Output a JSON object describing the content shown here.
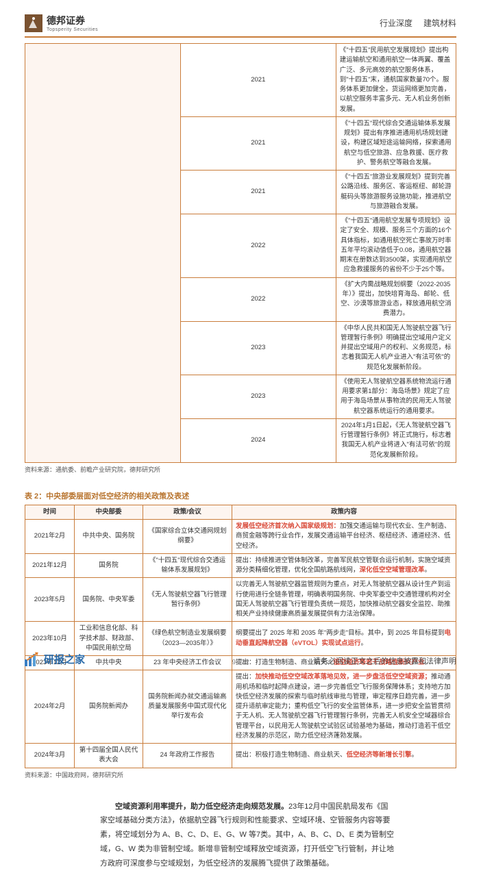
{
  "header": {
    "logo_cn": "德邦证券",
    "logo_en": "Topsperity Securities",
    "category_a": "行业深度",
    "category_b": "建筑材料"
  },
  "table1_rows": [
    {
      "year": "2021",
      "content": "《\"十四五\"民用航空发展规划》提出构建运输航空和通用航空一体两翼、覆盖广泛、多元高效的航空服务体系，到\"十四五\"末，通航国家数量70个。服务体系更加健全，货运网络更加完善，以航空服务丰富多元、无人机业务创新发展。"
    },
    {
      "year": "2021",
      "content": "《\"十四五\"现代综合交通运输体系发展规划》提出有序推进通用机场规划建设，构建区域短途运输网络，探索通用航空与低空旅游、应急救援、医疗救护、警务航空等融合发展。"
    },
    {
      "year": "2021",
      "content": "《\"十四五\"旅游业发展规划》提到完善公路沿线、服务区、客运枢纽、邮轮游艇码头等旅游服务设施功能，推进航空与旅游融合发展。"
    },
    {
      "year": "2022",
      "content": "《\"十四五\"通用航空发展专项规划》设定了安全、规模、服务三个方面的16个具体指标，如通用航空死亡事故万时率五年平均滚动值低于0.08，通用航空器期末在册数达到3500架，实现通用航空应急救援服务的省份不少于25个等。"
    },
    {
      "year": "2022",
      "content": "《扩大内需战略规划纲要（2022-2035年）》提出，加快培育海岛、邮轮、低空、沙漠等旅游业态，释放通用航空消费潜力。"
    },
    {
      "year": "2023",
      "content": "《中华人民共和国无人驾驶航空器飞行管理暂行条例》明确提出空域用户定义并提出空域用户的权利、义务规范，标志着我国无人机产业进入\"有法可依\"的规范化发展新阶段。"
    },
    {
      "year": "2023",
      "content": "《使用无人驾驶航空器系统物流运行通用要求第1部分：海岛场景》规定了应用于海岛场景从事物流的民用无人驾驶航空器系统运行的通用要求。"
    },
    {
      "year": "2024",
      "content": "2024年1月1日起，《无人驾驶航空器飞行管理暂行条例》将正式施行，标志着我国无人机产业将进入\"有法可依\"的规范化发展新阶段。"
    }
  ],
  "table1_source": "资料来源：通航委、前瞻产业研究院，德邦研究所",
  "table2_title": "表 2：中央部委层面对低空经济的相关政策及表述",
  "table2_headers": {
    "time": "时间",
    "dept": "中央部委",
    "policy": "政策/会议",
    "content": "政策内容"
  },
  "table2_rows": [
    {
      "time": "2021年2月",
      "dept": "中共中央、国务院",
      "policy": "《国家综合立体交通网规划纲要》",
      "content_prefix": "",
      "highlight": "发展低空经济首次纳入国家级规划：",
      "content_suffix": "加强交通运输与现代农业、生产制造、商贸金融等跨行业合作，发展交通运输平台经济、枢纽经济、通道经济、低空经济。"
    },
    {
      "time": "2021年12月",
      "dept": "国务院",
      "policy": "《\"十四五\"现代综合交通运输体系发展规划》",
      "content_prefix": "提出：持续推进空管体制改革，完善军民航空管联合运行机制，实施空域资源分类精细化管理，优化全国航路航线网，",
      "highlight": "深化低空空域管理改革",
      "content_suffix": "。"
    },
    {
      "time": "2023年5月",
      "dept": "国务院、中央军委",
      "policy": "《无人驾驶航空器飞行管理暂行条例》",
      "content_prefix": "以完善无人驾驶航空器监管规则为重点，对无人驾驶航空器从设计生产到运行使用进行全链条管理，明确表明国务院、中央军委空中交通管理机构对全国无人驾驶航空器飞行管理负责统一规范，加快推动航空器安全监控、助推相关产业持续健康高质量发展提供有力法治保障。",
      "highlight": "",
      "content_suffix": ""
    },
    {
      "time": "2023年10月",
      "dept": "工业和信息化部、科学技术部、财政部、中国民用航空局",
      "policy": "《绿色航空制造业发展纲要（2023—2035年）》",
      "content_prefix": "纲要提出了 2025 年和 2035 年\"两步走\"目标。其中，到 2025 年目标提到",
      "highlight": "电动垂直起降航空器（eVTOL）实现试点运行",
      "content_suffix": "。"
    },
    {
      "time": "2023年12月",
      "dept": "中共中央",
      "policy": "23 年中央经济工作会议",
      "content_prefix": "提出：打造生物制造、商业航天、",
      "highlight": "低空经济等若干战略性新兴产业",
      "content_suffix": "。"
    },
    {
      "time": "2024年2月",
      "dept": "国务院新闻办",
      "policy": "国务院新闻办就交通运输高质量发展服务中国式现代化举行发布会",
      "content_prefix": "提出：",
      "highlight": "加快推动低空空域改革落地见效，进一步盘活低空空域资源；",
      "content_suffix": "推动通用机场和临时起降点建设，进一步完善低空飞行服务保障体系；支持地方加快低空经济发展的探索与临时航线审批与管理，审定程序日趋完善，进一步提升适航审定能力；重构低空飞行的安全监管体系，进一步把安全监管贯彻于无人机、无人驾驶航空器飞行管理暂行条例，完善无人机安全空域器综合管理平台，以民用无人驾驶航空试验区试验基地为基础，推动打造若干低空经济发展的示范区，助力低空经济蓬勃发展。"
    },
    {
      "time": "2024年3月",
      "dept": "第十四届全国人民代表大会",
      "policy": "24 年政府工作报告",
      "content_prefix": "提出：积极打造生物制造、商业航天、",
      "highlight": "低空经济等新增长引擎",
      "content_suffix": "。"
    }
  ],
  "table2_source": "资料来源：中国政府网，德邦研究所",
  "body_paragraph": "空域资源利用率提升，助力低空经济走向规范发展。23年12月中国民航局发布《国家空域基础分类方法》，依据航空器飞行规则和性能要求、空域环境、空管服务内容等要素，将空域划分为 A、B、C、D、E、G、W 等7类。其中，A、B、C、D、E 类为管制空域，G、W 类为非管制空域。新增非管制空域释放空域资源，打开低空飞行管制，并让地方政府可深度参与空域规划，为低空经济的发展腾飞提供了政策基础。",
  "footer": {
    "brand": "研报之家",
    "pageno": "9 / 32",
    "disclaimer": "请务必阅读正文之后的信息披露和法律声明"
  },
  "colors": {
    "accent": "#c97c3a",
    "highlight_bg": "#fdf5f0",
    "red": "#d94b3a",
    "footer_blue": "#2a6aa8"
  }
}
